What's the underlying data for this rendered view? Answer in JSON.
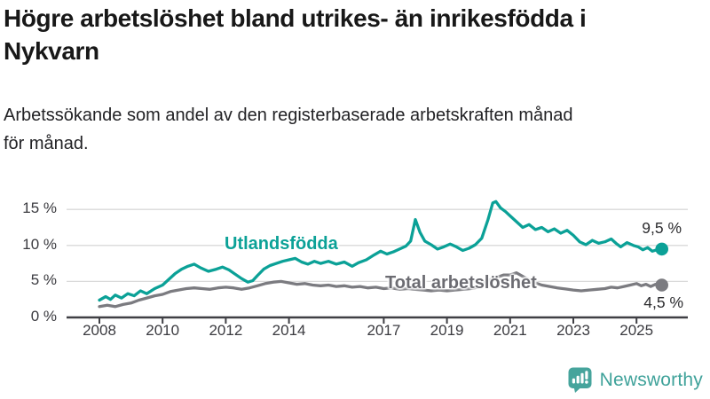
{
  "header": {
    "title_line1": "Högre arbetslöshet bland utrikes- än inrikesfödda i",
    "title_line2": "Nykvarn",
    "subtitle_line1": "Arbetssökande som andel av den registerbaserade arbetskraften månad",
    "subtitle_line2": "för månad."
  },
  "chart_data": {
    "type": "line",
    "title": "Högre arbetslöshet bland utrikes- än inrikesfödda i Nykvarn",
    "subtitle": "Arbetssökande som andel av den registerbaserade arbetskraften månad för månad.",
    "unit": "%",
    "ylim": [
      0,
      17
    ],
    "x_range": [
      2008,
      2025.83
    ],
    "grid": "horizontal",
    "legend_position": "inline-labels",
    "colors": {
      "utlandsfodda": "#0ba197",
      "total": "#7b7b80",
      "axis": "#3f3f44",
      "gridline": "#d9d9d9"
    },
    "y_ticks": [
      {
        "value": 0,
        "label": "0 %"
      },
      {
        "value": 5,
        "label": "5 %"
      },
      {
        "value": 10,
        "label": "10 %"
      },
      {
        "value": 15,
        "label": "15 %"
      }
    ],
    "x_ticks": [
      {
        "value": 2008,
        "label": "2008"
      },
      {
        "value": 2010,
        "label": "2010"
      },
      {
        "value": 2012,
        "label": "2012"
      },
      {
        "value": 2014,
        "label": "2014"
      },
      {
        "value": 2017,
        "label": "2017"
      },
      {
        "value": 2019,
        "label": "2019"
      },
      {
        "value": 2021,
        "label": "2021"
      },
      {
        "value": 2023,
        "label": "2023"
      },
      {
        "value": 2025,
        "label": "2025"
      }
    ],
    "series": [
      {
        "name": "Utlandsfödda",
        "color": "#0ba197",
        "end_value": 9.5,
        "end_label": "9,5 %",
        "points": [
          [
            2008.0,
            2.4
          ],
          [
            2008.2,
            2.9
          ],
          [
            2008.35,
            2.5
          ],
          [
            2008.5,
            3.1
          ],
          [
            2008.7,
            2.7
          ],
          [
            2008.9,
            3.3
          ],
          [
            2009.1,
            3.0
          ],
          [
            2009.3,
            3.7
          ],
          [
            2009.5,
            3.3
          ],
          [
            2009.75,
            4.0
          ],
          [
            2010.0,
            4.5
          ],
          [
            2010.2,
            5.3
          ],
          [
            2010.4,
            6.1
          ],
          [
            2010.6,
            6.7
          ],
          [
            2010.8,
            7.1
          ],
          [
            2011.0,
            7.4
          ],
          [
            2011.2,
            6.9
          ],
          [
            2011.45,
            6.4
          ],
          [
            2011.7,
            6.7
          ],
          [
            2011.9,
            7.0
          ],
          [
            2012.1,
            6.6
          ],
          [
            2012.3,
            6.0
          ],
          [
            2012.5,
            5.4
          ],
          [
            2012.7,
            4.9
          ],
          [
            2012.85,
            5.1
          ],
          [
            2013.0,
            5.8
          ],
          [
            2013.2,
            6.7
          ],
          [
            2013.4,
            7.2
          ],
          [
            2013.6,
            7.5
          ],
          [
            2013.8,
            7.8
          ],
          [
            2014.0,
            8.0
          ],
          [
            2014.2,
            8.2
          ],
          [
            2014.4,
            7.7
          ],
          [
            2014.6,
            7.4
          ],
          [
            2014.8,
            7.8
          ],
          [
            2015.0,
            7.5
          ],
          [
            2015.25,
            7.8
          ],
          [
            2015.5,
            7.4
          ],
          [
            2015.75,
            7.7
          ],
          [
            2016.0,
            7.1
          ],
          [
            2016.2,
            7.6
          ],
          [
            2016.45,
            8.0
          ],
          [
            2016.7,
            8.7
          ],
          [
            2016.9,
            9.2
          ],
          [
            2017.1,
            8.8
          ],
          [
            2017.3,
            9.1
          ],
          [
            2017.5,
            9.5
          ],
          [
            2017.7,
            9.9
          ],
          [
            2017.85,
            10.6
          ],
          [
            2018.0,
            13.6
          ],
          [
            2018.15,
            11.8
          ],
          [
            2018.3,
            10.6
          ],
          [
            2018.5,
            10.1
          ],
          [
            2018.7,
            9.5
          ],
          [
            2018.9,
            9.8
          ],
          [
            2019.1,
            10.2
          ],
          [
            2019.3,
            9.8
          ],
          [
            2019.5,
            9.3
          ],
          [
            2019.7,
            9.6
          ],
          [
            2019.9,
            10.1
          ],
          [
            2020.1,
            11.0
          ],
          [
            2020.3,
            13.6
          ],
          [
            2020.45,
            15.9
          ],
          [
            2020.55,
            16.1
          ],
          [
            2020.7,
            15.2
          ],
          [
            2020.85,
            14.7
          ],
          [
            2021.0,
            14.1
          ],
          [
            2021.2,
            13.3
          ],
          [
            2021.4,
            12.5
          ],
          [
            2021.6,
            12.9
          ],
          [
            2021.8,
            12.2
          ],
          [
            2022.0,
            12.5
          ],
          [
            2022.2,
            11.9
          ],
          [
            2022.4,
            12.3
          ],
          [
            2022.6,
            11.7
          ],
          [
            2022.8,
            12.1
          ],
          [
            2023.0,
            11.4
          ],
          [
            2023.2,
            10.5
          ],
          [
            2023.4,
            10.1
          ],
          [
            2023.6,
            10.7
          ],
          [
            2023.8,
            10.3
          ],
          [
            2024.0,
            10.5
          ],
          [
            2024.2,
            10.9
          ],
          [
            2024.35,
            10.3
          ],
          [
            2024.5,
            9.8
          ],
          [
            2024.7,
            10.4
          ],
          [
            2024.9,
            10.0
          ],
          [
            2025.05,
            9.8
          ],
          [
            2025.2,
            9.4
          ],
          [
            2025.35,
            9.7
          ],
          [
            2025.5,
            9.2
          ],
          [
            2025.65,
            9.4
          ],
          [
            2025.8,
            9.5
          ]
        ]
      },
      {
        "name": "Total arbetslöshet",
        "color": "#7b7b80",
        "end_value": 4.5,
        "end_label": "4,5 %",
        "points": [
          [
            2008.0,
            1.5
          ],
          [
            2008.25,
            1.7
          ],
          [
            2008.5,
            1.5
          ],
          [
            2008.75,
            1.8
          ],
          [
            2009.0,
            2.0
          ],
          [
            2009.25,
            2.4
          ],
          [
            2009.5,
            2.7
          ],
          [
            2009.75,
            3.0
          ],
          [
            2010.0,
            3.2
          ],
          [
            2010.25,
            3.6
          ],
          [
            2010.5,
            3.8
          ],
          [
            2010.75,
            4.0
          ],
          [
            2011.0,
            4.1
          ],
          [
            2011.25,
            4.0
          ],
          [
            2011.5,
            3.9
          ],
          [
            2011.75,
            4.1
          ],
          [
            2012.0,
            4.2
          ],
          [
            2012.25,
            4.1
          ],
          [
            2012.5,
            3.9
          ],
          [
            2012.75,
            4.1
          ],
          [
            2013.0,
            4.4
          ],
          [
            2013.25,
            4.7
          ],
          [
            2013.5,
            4.9
          ],
          [
            2013.75,
            5.0
          ],
          [
            2014.0,
            4.8
          ],
          [
            2014.25,
            4.6
          ],
          [
            2014.5,
            4.7
          ],
          [
            2014.75,
            4.5
          ],
          [
            2015.0,
            4.4
          ],
          [
            2015.25,
            4.5
          ],
          [
            2015.5,
            4.3
          ],
          [
            2015.75,
            4.4
          ],
          [
            2016.0,
            4.2
          ],
          [
            2016.25,
            4.3
          ],
          [
            2016.5,
            4.1
          ],
          [
            2016.75,
            4.2
          ],
          [
            2017.0,
            4.0
          ],
          [
            2017.25,
            4.1
          ],
          [
            2017.5,
            3.9
          ],
          [
            2017.75,
            4.0
          ],
          [
            2018.0,
            3.9
          ],
          [
            2018.25,
            3.8
          ],
          [
            2018.5,
            3.7
          ],
          [
            2018.75,
            3.8
          ],
          [
            2019.0,
            3.7
          ],
          [
            2019.25,
            3.8
          ],
          [
            2019.5,
            3.9
          ],
          [
            2019.75,
            4.0
          ],
          [
            2020.0,
            4.2
          ],
          [
            2020.2,
            4.9
          ],
          [
            2020.4,
            5.3
          ],
          [
            2020.6,
            5.6
          ],
          [
            2020.8,
            5.9
          ],
          [
            2021.0,
            5.9
          ],
          [
            2021.2,
            6.2
          ],
          [
            2021.4,
            5.7
          ],
          [
            2021.6,
            5.2
          ],
          [
            2021.8,
            4.8
          ],
          [
            2022.0,
            4.5
          ],
          [
            2022.25,
            4.3
          ],
          [
            2022.5,
            4.1
          ],
          [
            2022.75,
            3.95
          ],
          [
            2023.0,
            3.8
          ],
          [
            2023.25,
            3.7
          ],
          [
            2023.5,
            3.8
          ],
          [
            2023.75,
            3.9
          ],
          [
            2024.0,
            4.0
          ],
          [
            2024.2,
            4.2
          ],
          [
            2024.4,
            4.1
          ],
          [
            2024.6,
            4.3
          ],
          [
            2024.8,
            4.5
          ],
          [
            2025.0,
            4.7
          ],
          [
            2025.15,
            4.4
          ],
          [
            2025.3,
            4.6
          ],
          [
            2025.45,
            4.3
          ],
          [
            2025.6,
            4.6
          ],
          [
            2025.8,
            4.5
          ]
        ]
      }
    ]
  },
  "footer": {
    "brand": "Newsworthy"
  }
}
